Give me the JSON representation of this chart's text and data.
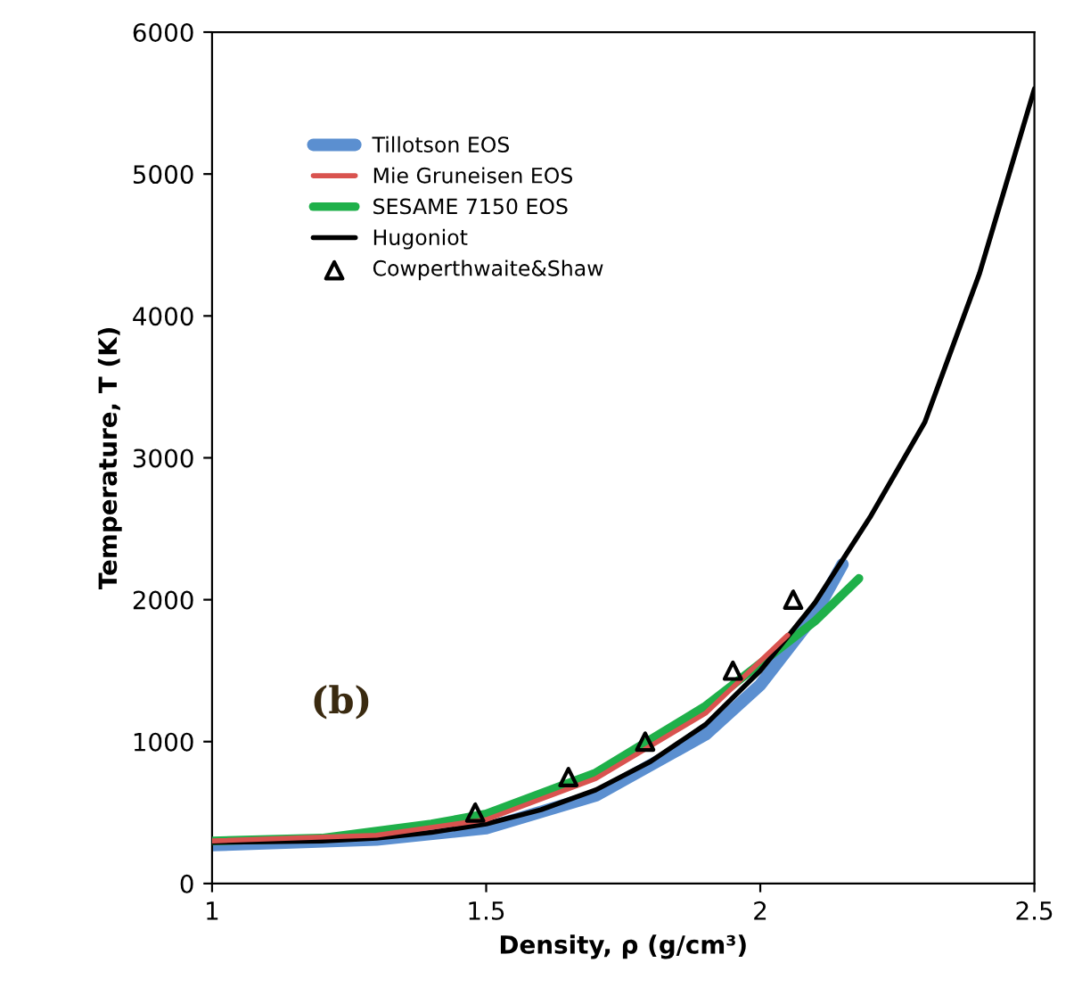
{
  "chart_data": {
    "type": "line",
    "xlabel": "Density, ρ (g/cm³)",
    "ylabel": "Temperature, T (K)",
    "xlim": [
      1,
      2.5
    ],
    "xticks": [
      1,
      1.5,
      2,
      2.5
    ],
    "ylim": [
      0,
      6000
    ],
    "yticks": [
      0,
      1000,
      2000,
      3000,
      4000,
      5000,
      6000
    ],
    "grid": false,
    "legend": "top left",
    "annotations": [
      "(b)"
    ],
    "series": [
      {
        "name": "Tillotson EOS",
        "color": "#5b8fd0",
        "x": [
          1.0,
          1.3,
          1.5,
          1.7,
          1.9,
          2.0,
          2.1,
          2.15
        ],
        "values": [
          270,
          310,
          390,
          620,
          1050,
          1400,
          1900,
          2250
        ]
      },
      {
        "name": "Mie Gruneisen EOS",
        "color": "#d9534f",
        "x": [
          1.0,
          1.3,
          1.5,
          1.7,
          1.9,
          2.05
        ],
        "values": [
          300,
          340,
          450,
          740,
          1200,
          1750
        ]
      },
      {
        "name": "SESAME 7150 EOS",
        "color": "#1fb04a",
        "x": [
          1.0,
          1.2,
          1.4,
          1.5,
          1.7,
          1.9,
          2.0,
          2.1,
          2.18
        ],
        "values": [
          300,
          320,
          420,
          490,
          780,
          1250,
          1550,
          1850,
          2150
        ]
      },
      {
        "name": "Hugoniot",
        "color": "#000000",
        "x": [
          1.0,
          1.2,
          1.3,
          1.4,
          1.5,
          1.6,
          1.7,
          1.8,
          1.9,
          2.0,
          2.1,
          2.2,
          2.3,
          2.4,
          2.5
        ],
        "values": [
          290,
          300,
          320,
          360,
          420,
          520,
          660,
          860,
          1120,
          1500,
          1980,
          2580,
          3250,
          4300,
          5600
        ]
      },
      {
        "name": "Cowperthwaite&Shaw",
        "type": "scatter",
        "marker": "triangle",
        "color": "#000000",
        "x": [
          1.48,
          1.65,
          1.79,
          1.95,
          2.06
        ],
        "values": [
          500,
          750,
          1000,
          1500,
          2000
        ]
      }
    ]
  }
}
